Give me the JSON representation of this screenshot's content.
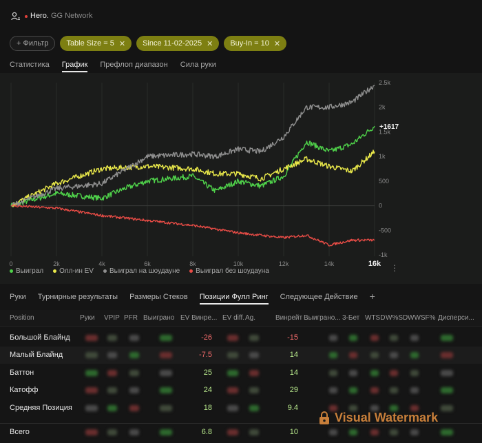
{
  "header": {
    "user": "Hero.",
    "network": "GG Network"
  },
  "filters": {
    "filter_label": "+ Фильтр",
    "active": [
      {
        "label": "Table Size = 5"
      },
      {
        "label": "Since 11-02-2025"
      },
      {
        "label": "Buy-In = 10"
      }
    ]
  },
  "main_tabs": [
    "Статистика",
    "График",
    "Префлоп диапазон",
    "Сила руки"
  ],
  "main_tab_active": "График",
  "chart_data": {
    "type": "line",
    "x_ticks": [
      "0",
      "2k",
      "4k",
      "6k",
      "8k",
      "10k",
      "12k",
      "14k",
      "16k"
    ],
    "y_ticks": [
      "2.5k",
      "2k",
      "1.5k",
      "1k",
      "500",
      "0",
      "-500",
      "-1k"
    ],
    "xlim": [
      0,
      16000
    ],
    "ylim": [
      -1000,
      2500
    ],
    "end_label": "+1617",
    "series": [
      {
        "name": "Выиграл",
        "color": "#4fd14a",
        "x": [
          0,
          2000,
          4000,
          5000,
          6000,
          8000,
          9000,
          10000,
          11000,
          12000,
          13000,
          14000,
          15000,
          16000
        ],
        "values": [
          0,
          250,
          150,
          350,
          500,
          600,
          300,
          500,
          400,
          600,
          1300,
          1100,
          1250,
          1617
        ]
      },
      {
        "name": "Олл-ин EV",
        "color": "#e9e84a",
        "x": [
          0,
          2000,
          4000,
          6000,
          8000,
          9000,
          10000,
          11000,
          12000,
          13000,
          14000,
          15000,
          16000
        ],
        "values": [
          0,
          450,
          750,
          800,
          750,
          650,
          650,
          550,
          750,
          950,
          800,
          700,
          1100
        ]
      },
      {
        "name": "Выиграл на шоудауне",
        "color": "#8f8f8f",
        "x": [
          0,
          2000,
          4000,
          6000,
          8000,
          9000,
          10000,
          11000,
          12000,
          13000,
          14000,
          15000,
          16000
        ],
        "values": [
          0,
          350,
          450,
          1000,
          1050,
          1000,
          1150,
          1100,
          1400,
          2000,
          2000,
          2100,
          2450
        ]
      },
      {
        "name": "Выиграл без шоудауна",
        "color": "#e84c46",
        "x": [
          0,
          2000,
          4000,
          6000,
          8000,
          10000,
          12000,
          13000,
          14000,
          15000,
          16000
        ],
        "values": [
          0,
          -50,
          -200,
          -300,
          -400,
          -550,
          -650,
          -600,
          -800,
          -700,
          -700
        ]
      }
    ]
  },
  "bottom_tabs": [
    "Руки",
    "Турнирные результаты",
    "Размеры Стеков",
    "Позиции Фулл Ринг",
    "Следующее Действие"
  ],
  "bottom_tab_active": "Позиции Фулл Ринг",
  "table": {
    "headers": [
      "Position",
      "Руки",
      "VPIP",
      "PFR",
      "Выиграно",
      "EV Винре...",
      "EV diff.",
      "Ag.",
      "Винрейт ...",
      "Выиграно...",
      "3-Бет",
      "WTSD",
      "W%SD",
      "WWSF%",
      "Дисперси..."
    ],
    "rows": [
      {
        "position": "Большой Блайнд",
        "ev_winrate": "-26",
        "winrate": "-15"
      },
      {
        "position": "Малый Блайнд",
        "ev_winrate": "-7.5",
        "winrate": "14"
      },
      {
        "position": "Баттон",
        "ev_winrate": "25",
        "winrate": "14"
      },
      {
        "position": "Катофф",
        "ev_winrate": "24",
        "winrate": "29"
      },
      {
        "position": "Средняя Позиция",
        "ev_winrate": "18",
        "winrate": "9.4"
      }
    ],
    "total": {
      "position": "Всего",
      "ev_winrate": "6.8",
      "winrate": "10"
    }
  },
  "watermark": "Visual Watermark",
  "colors": {
    "positive": "#b5e58a",
    "negative": "#f26b6b",
    "chip_active": "#7d7f12"
  }
}
